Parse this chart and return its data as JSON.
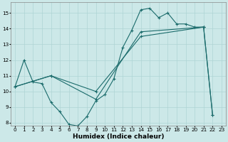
{
  "xlabel": "Humidex (Indice chaleur)",
  "bg_color": "#cce8e8",
  "line_color": "#1a6b6b",
  "grid_color": "#aed4d4",
  "xlim": [
    -0.5,
    23.5
  ],
  "ylim": [
    7.8,
    15.7
  ],
  "yticks": [
    8,
    9,
    10,
    11,
    12,
    13,
    14,
    15
  ],
  "xticks": [
    0,
    1,
    2,
    3,
    4,
    5,
    6,
    7,
    8,
    9,
    10,
    11,
    12,
    13,
    14,
    15,
    16,
    17,
    18,
    19,
    20,
    21,
    22,
    23
  ],
  "line1_x": [
    0,
    1,
    2,
    3,
    4,
    5,
    6,
    7,
    8,
    9,
    10,
    11,
    12,
    13,
    14,
    15,
    16,
    17,
    18,
    19,
    20,
    21,
    22
  ],
  "line1_y": [
    10.3,
    12.0,
    10.6,
    10.5,
    9.3,
    8.7,
    7.9,
    7.8,
    8.4,
    9.4,
    9.8,
    10.8,
    12.8,
    13.9,
    15.2,
    15.3,
    14.7,
    15.0,
    14.3,
    14.3,
    14.1,
    14.1,
    8.5
  ],
  "line2_x": [
    0,
    4,
    9,
    14,
    21
  ],
  "line2_y": [
    10.3,
    11.0,
    9.5,
    13.8,
    14.1
  ],
  "line3_x": [
    0,
    4,
    9,
    14,
    21,
    22
  ],
  "line3_y": [
    10.3,
    11.0,
    10.0,
    13.5,
    14.1,
    8.5
  ],
  "xlabel_fontsize": 6.5,
  "tick_fontsize": 5.2,
  "ylabel_fontsize": 6
}
